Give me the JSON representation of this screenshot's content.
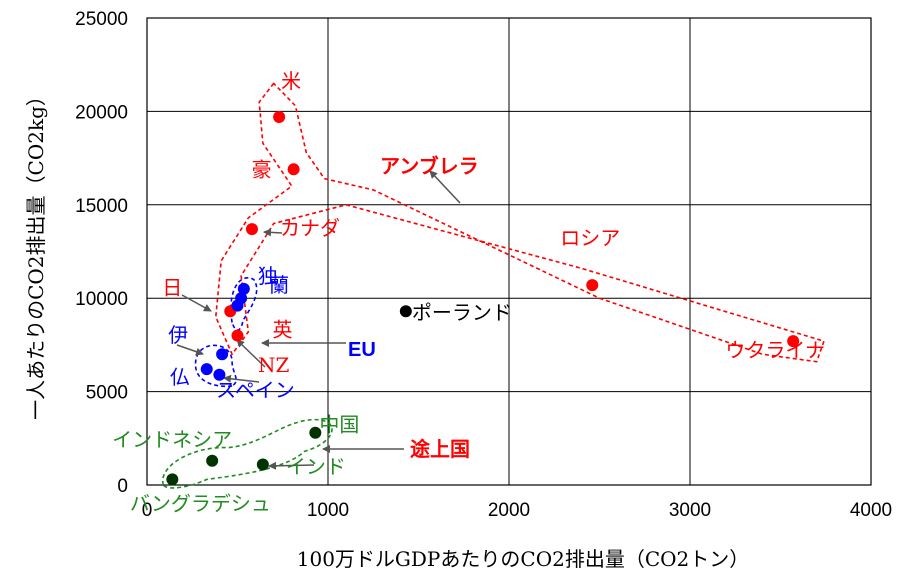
{
  "chart_data": {
    "type": "scatter",
    "title": "",
    "xlabel": "100万ドルGDPあたりのCO2排出量（CO2トン）",
    "ylabel": "一人あたりのCO2排出量（CO2kg）",
    "xlim": [
      0,
      4000
    ],
    "ylim": [
      0,
      25000
    ],
    "xticks": [
      "0",
      "1000",
      "2000",
      "3000",
      "4000"
    ],
    "yticks": [
      "0",
      "5000",
      "10000",
      "15000",
      "20000",
      "25000"
    ],
    "grid": true,
    "series": [
      {
        "color": "#ff0000",
        "points": [
          {
            "x": 730,
            "y": 19700,
            "label": "米"
          },
          {
            "x": 810,
            "y": 16900,
            "label": "豪"
          },
          {
            "x": 580,
            "y": 13700,
            "label": "カナダ"
          },
          {
            "x": 460,
            "y": 9300,
            "label": "日"
          },
          {
            "x": 500,
            "y": 8000,
            "label": "英"
          },
          {
            "x": 2460,
            "y": 10700,
            "label": "ロシア"
          },
          {
            "x": 3570,
            "y": 7700,
            "label": "ウクライナ"
          }
        ]
      },
      {
        "color": "#0000ff",
        "points": [
          {
            "x": 535,
            "y": 10500,
            "label": "独"
          },
          {
            "x": 520,
            "y": 10000,
            "label": "蘭"
          },
          {
            "x": 500,
            "y": 9600,
            "label": ""
          },
          {
            "x": 415,
            "y": 7000,
            "label": "伊"
          },
          {
            "x": 330,
            "y": 6200,
            "label": "仏"
          },
          {
            "x": 400,
            "y": 5900,
            "label": "スペイン"
          }
        ]
      },
      {
        "color": "#000000",
        "points": [
          {
            "x": 1430,
            "y": 9300,
            "label": "ポーランド"
          }
        ]
      },
      {
        "color": "#003300",
        "points": [
          {
            "x": 930,
            "y": 2800,
            "label": "中国"
          },
          {
            "x": 360,
            "y": 1300,
            "label": "インドネシア"
          },
          {
            "x": 640,
            "y": 1100,
            "label": "インド"
          },
          {
            "x": 140,
            "y": 300,
            "label": "バングラデシュ"
          }
        ]
      }
    ],
    "annotations": {
      "nz": "NZ",
      "umbrella": "アンブレラ",
      "eu": "EU",
      "developing": "途上国"
    },
    "colors": {
      "umbrella": "#ff0000",
      "eu": "#0000ff",
      "developing": "#228b22",
      "arrow": "#555555"
    }
  }
}
